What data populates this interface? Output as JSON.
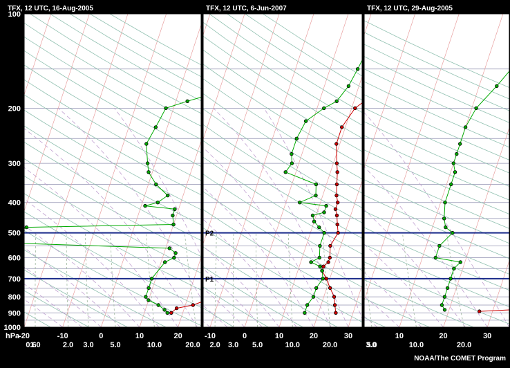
{
  "credit": "NOAA/The COMET Program",
  "y_axis": {
    "unit_label": "hPa",
    "ticks": [
      100,
      200,
      300,
      400,
      500,
      600,
      700,
      800,
      900,
      1000
    ],
    "range": [
      100,
      1000
    ],
    "scale": "log"
  },
  "reference_lines": [
    {
      "label": "P2",
      "pressure": 500,
      "color": "#1a2a8a"
    },
    {
      "label": "P1",
      "pressure": 700,
      "color": "#1a2a8a"
    }
  ],
  "colors": {
    "temperature": "#cc0000",
    "dewpoint": "#00aa00",
    "frame": "#000000",
    "isobar": "#9090b0",
    "isotherm": "#e8a0a0",
    "dry_adiabat": "#90c0b0",
    "moist_adiabat": "#c0a0d0",
    "mixing_ratio": "#a0b8a0"
  },
  "chart_data": [
    {
      "type": "line",
      "title": "TFX, 12 UTC, 16-Aug-2005",
      "temp_ticks": [
        "-20",
        "-10",
        "0",
        "10",
        "20"
      ],
      "mixing_ticks": [
        "0.6",
        "1.0",
        "2.0",
        "3.0",
        "5.0",
        "10.0",
        "20.0"
      ],
      "series": [
        {
          "key": "temperature",
          "points": [
            [
              100,
              30
            ],
            [
              130,
              34
            ],
            [
              160,
              21
            ],
            [
              170,
              19
            ],
            [
              190,
              12
            ],
            [
              200,
              11
            ],
            [
              230,
              12
            ],
            [
              260,
              13
            ],
            [
              300,
              13
            ],
            [
              320,
              16
            ],
            [
              350,
              17
            ],
            [
              380,
              17
            ],
            [
              400,
              18
            ],
            [
              420,
              18.5
            ],
            [
              440,
              19
            ],
            [
              470,
              20
            ],
            [
              500,
              22
            ],
            [
              530,
              22
            ],
            [
              570,
              21
            ],
            [
              600,
              22
            ],
            [
              620,
              22
            ],
            [
              640,
              23
            ],
            [
              700,
              27
            ],
            [
              750,
              27
            ],
            [
              800,
              27
            ],
            [
              820,
              25
            ],
            [
              850,
              22
            ],
            [
              870,
              18
            ],
            [
              900,
              17
            ]
          ]
        },
        {
          "key": "dewpoint",
          "points": [
            [
              100,
              23
            ],
            [
              130,
              17
            ],
            [
              170,
              9
            ],
            [
              180,
              9
            ],
            [
              190,
              3
            ],
            [
              200,
              -2
            ],
            [
              230,
              -3
            ],
            [
              260,
              -4
            ],
            [
              300,
              -2
            ],
            [
              320,
              -1
            ],
            [
              350,
              2
            ],
            [
              380,
              6
            ],
            [
              400,
              4
            ],
            [
              410,
              1
            ],
            [
              420,
              9
            ],
            [
              440,
              9
            ],
            [
              470,
              10
            ],
            [
              480,
              -28
            ],
            [
              500,
              -30
            ],
            [
              540,
              -28
            ],
            [
              560,
              11
            ],
            [
              580,
              13
            ],
            [
              600,
              13
            ],
            [
              620,
              11
            ],
            [
              700,
              9
            ],
            [
              750,
              9
            ],
            [
              800,
              9
            ],
            [
              820,
              10
            ],
            [
              850,
              13
            ],
            [
              880,
              15
            ],
            [
              900,
              16
            ]
          ]
        }
      ]
    },
    {
      "type": "line",
      "title": "TFX, 12 UTC, 6-Jun-2007",
      "temp_ticks": [
        "-10",
        "0",
        "10",
        "20",
        "30"
      ],
      "mixing_ticks": [
        "2.0",
        "3.0",
        "5.0",
        "10.0",
        "20.0"
      ],
      "series": [
        {
          "key": "temperature",
          "points": [
            [
              100,
              34
            ],
            [
              150,
              24
            ],
            [
              160,
              23
            ],
            [
              170,
              21
            ],
            [
              190,
              13
            ],
            [
              200,
              11
            ],
            [
              230,
              9
            ],
            [
              260,
              9
            ],
            [
              300,
              11
            ],
            [
              320,
              12
            ],
            [
              350,
              13
            ],
            [
              380,
              14
            ],
            [
              400,
              15
            ],
            [
              420,
              15
            ],
            [
              440,
              16
            ],
            [
              470,
              17
            ],
            [
              500,
              18
            ],
            [
              550,
              17
            ],
            [
              600,
              18
            ],
            [
              620,
              18
            ],
            [
              640,
              17
            ],
            [
              660,
              17
            ],
            [
              700,
              19
            ],
            [
              750,
              21
            ],
            [
              800,
              23
            ],
            [
              850,
              24
            ],
            [
              900,
              25
            ]
          ]
        },
        {
          "key": "dewpoint",
          "points": [
            [
              100,
              10
            ],
            [
              120,
              9
            ],
            [
              130,
              9
            ],
            [
              150,
              8
            ],
            [
              170,
              7
            ],
            [
              190,
              5
            ],
            [
              200,
              2
            ],
            [
              220,
              -2
            ],
            [
              250,
              -3
            ],
            [
              280,
              -3
            ],
            [
              300,
              -2
            ],
            [
              320,
              -3
            ],
            [
              350,
              7
            ],
            [
              380,
              8
            ],
            [
              400,
              4
            ],
            [
              410,
              12
            ],
            [
              430,
              12
            ],
            [
              440,
              9
            ],
            [
              460,
              10
            ],
            [
              480,
              12
            ],
            [
              500,
              14
            ],
            [
              550,
              14
            ],
            [
              600,
              15
            ],
            [
              620,
              13
            ],
            [
              640,
              16
            ],
            [
              660,
              17
            ],
            [
              700,
              18
            ],
            [
              750,
              17
            ],
            [
              800,
              17
            ],
            [
              850,
              16
            ],
            [
              900,
              16
            ]
          ]
        }
      ]
    },
    {
      "type": "line",
      "title": "TFX, 12 UTC, 29-Aug-2005",
      "temp_ticks": [
        "10",
        "20",
        "30"
      ],
      "mixing_ticks": [
        "3.0",
        "5.0",
        "10.0",
        "20.0"
      ],
      "series": [
        {
          "key": "temperature",
          "points": [
            [
              100,
              34
            ],
            [
              120,
              31
            ],
            [
              130,
              29
            ],
            [
              140,
              28
            ],
            [
              150,
              28
            ],
            [
              170,
              26
            ],
            [
              200,
              24
            ],
            [
              230,
              24
            ],
            [
              260,
              24
            ],
            [
              280,
              25
            ],
            [
              300,
              26
            ],
            [
              320,
              27
            ],
            [
              350,
              28
            ],
            [
              400,
              29
            ],
            [
              450,
              30
            ],
            [
              470,
              30
            ],
            [
              500,
              31
            ],
            [
              550,
              32
            ],
            [
              600,
              32
            ],
            [
              620,
              32
            ],
            [
              650,
              32
            ],
            [
              700,
              34
            ],
            [
              750,
              35
            ],
            [
              800,
              35
            ],
            [
              850,
              35
            ],
            [
              880,
              34
            ],
            [
              890,
              27
            ]
          ]
        },
        {
          "key": "dewpoint",
          "points": [
            [
              100,
              22
            ],
            [
              120,
              20
            ],
            [
              130,
              18
            ],
            [
              140,
              17
            ],
            [
              150,
              16
            ],
            [
              170,
              14
            ],
            [
              200,
              11
            ],
            [
              230,
              10
            ],
            [
              260,
              10
            ],
            [
              280,
              10
            ],
            [
              300,
              10
            ],
            [
              320,
              11
            ],
            [
              350,
              11
            ],
            [
              400,
              11
            ],
            [
              450,
              12
            ],
            [
              480,
              13
            ],
            [
              500,
              15
            ],
            [
              550,
              13
            ],
            [
              600,
              13
            ],
            [
              620,
              19
            ],
            [
              650,
              18
            ],
            [
              700,
              18
            ],
            [
              750,
              18
            ],
            [
              800,
              18
            ],
            [
              850,
              18
            ],
            [
              880,
              19
            ]
          ]
        }
      ]
    }
  ]
}
